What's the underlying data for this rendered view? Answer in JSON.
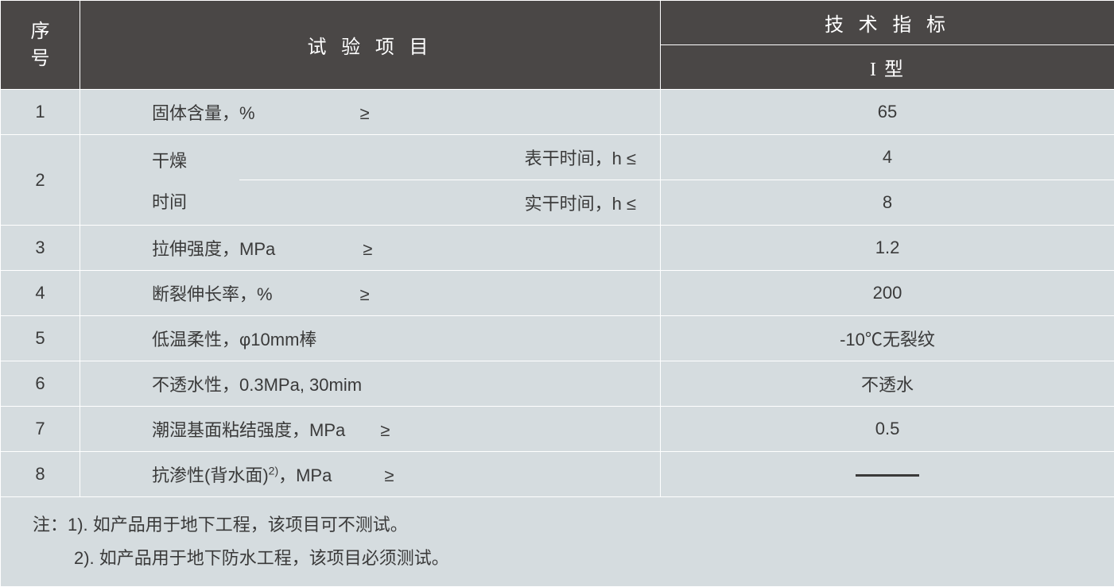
{
  "header": {
    "seq": "序号",
    "item": "试 验 项 目",
    "spec_top": "技 术 指 标",
    "spec_sub": "I 型"
  },
  "rows": [
    {
      "seq": "1",
      "item": "固体含量，%　　　　　　≥",
      "spec": "65"
    },
    {
      "seq": "2",
      "item_left": "干燥",
      "item_left2": "时间",
      "sub1_right": "表干时间，h ≤",
      "sub1_spec": "4",
      "sub2_right": "实干时间，h ≤",
      "sub2_spec": "8"
    },
    {
      "seq": "3",
      "item": "拉伸强度，MPa　　　　　≥",
      "spec": "1.2"
    },
    {
      "seq": "4",
      "item": "断裂伸长率，%　　　　　≥",
      "spec": "200"
    },
    {
      "seq": "5",
      "item": "低温柔性，φ10mm棒",
      "spec": "-10℃无裂纹"
    },
    {
      "seq": "6",
      "item": "不透水性，0.3MPa, 30mim",
      "spec": "不透水"
    },
    {
      "seq": "7",
      "item": "潮湿基面粘结强度，MPa　　≥",
      "spec": "0.5"
    },
    {
      "seq": "8",
      "item_html": "抗渗性(背水面)",
      "item_sup": "2)",
      "item_tail": "，MPa　　　≥",
      "spec_dash": true
    }
  ],
  "notes": {
    "line1": "注：1). 如产品用于地下工程，该项目可不测试。",
    "line2": "2). 如产品用于地下防水工程，该项目必须测试。"
  },
  "colors": {
    "header_bg": "#4a4746",
    "header_text": "#ffffff",
    "cell_bg": "#d5dcdf",
    "cell_text": "#3a3a3a",
    "border": "#ffffff"
  },
  "fonts": {
    "header_size": 24,
    "cell_size": 22
  }
}
